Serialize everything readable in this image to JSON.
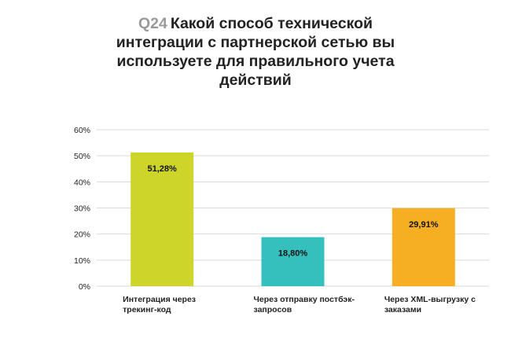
{
  "question": {
    "number": "Q24",
    "text": "Какой способ технической интеграции с партнерской сетью вы используете для правильного учета действий"
  },
  "chart_data": {
    "type": "bar",
    "categories": [
      "Интеграция через трекинг-код",
      "Через отправку постбэк-запросов",
      "Через XML-выгрузку с заказами"
    ],
    "values": [
      51.28,
      18.8,
      29.91
    ],
    "data_labels": [
      "51,28%",
      "18,80%",
      "29,91%"
    ],
    "colors": [
      "#cdd52a",
      "#35bfbd",
      "#f6ae22"
    ],
    "ylim": [
      0,
      60
    ],
    "yticks": [
      "0%",
      "10%",
      "20%",
      "30%",
      "40%",
      "50%",
      "60%"
    ],
    "grid": true
  }
}
